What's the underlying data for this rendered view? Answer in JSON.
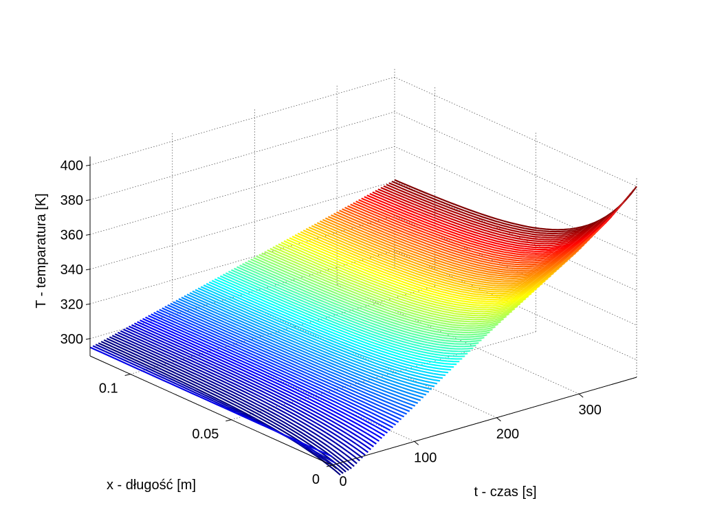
{
  "chart_data": {
    "type": "surface3d",
    "title": "",
    "xlabel": "t - czas [s]",
    "ylabel": "x - długość [m]",
    "zlabel": "T - temparatura [K]",
    "t_range": [
      0,
      370
    ],
    "x_range": [
      0,
      0.12
    ],
    "z_range": [
      290,
      405
    ],
    "t_ticks": [
      {
        "value": 0,
        "label": "0"
      },
      {
        "value": 100,
        "label": "100"
      },
      {
        "value": 200,
        "label": "200"
      },
      {
        "value": 300,
        "label": "300"
      }
    ],
    "x_ticks": [
      {
        "value": 0,
        "label": "0"
      },
      {
        "value": 0.05,
        "label": "0.05"
      },
      {
        "value": 0.1,
        "label": "0.1"
      }
    ],
    "z_ticks": [
      {
        "value": 300,
        "label": "300"
      },
      {
        "value": 320,
        "label": "320"
      },
      {
        "value": 340,
        "label": "340"
      },
      {
        "value": 360,
        "label": "360"
      },
      {
        "value": 380,
        "label": "380"
      },
      {
        "value": 400,
        "label": "400"
      }
    ],
    "surface": {
      "initial_temperature": 295,
      "boundary_edge_x": 0,
      "boundary_edge_temperature": [
        {
          "t": 0,
          "T": 295
        },
        {
          "t": 10,
          "T": 283
        },
        {
          "t": 25,
          "T": 285
        },
        {
          "t": 60,
          "T": 297
        },
        {
          "t": 100,
          "T": 310
        },
        {
          "t": 150,
          "T": 327
        },
        {
          "t": 200,
          "T": 343
        },
        {
          "t": 250,
          "T": 358
        },
        {
          "t": 300,
          "T": 373
        },
        {
          "t": 340,
          "T": 387
        },
        {
          "t": 370,
          "T": 400
        }
      ],
      "far_edge_x": 0.12,
      "far_edge_temperature": [
        {
          "t": 0,
          "T": 295
        },
        {
          "t": 370,
          "T": 340
        }
      ],
      "colormap": "jet",
      "color_range": [
        283,
        400
      ]
    },
    "grid": true
  }
}
